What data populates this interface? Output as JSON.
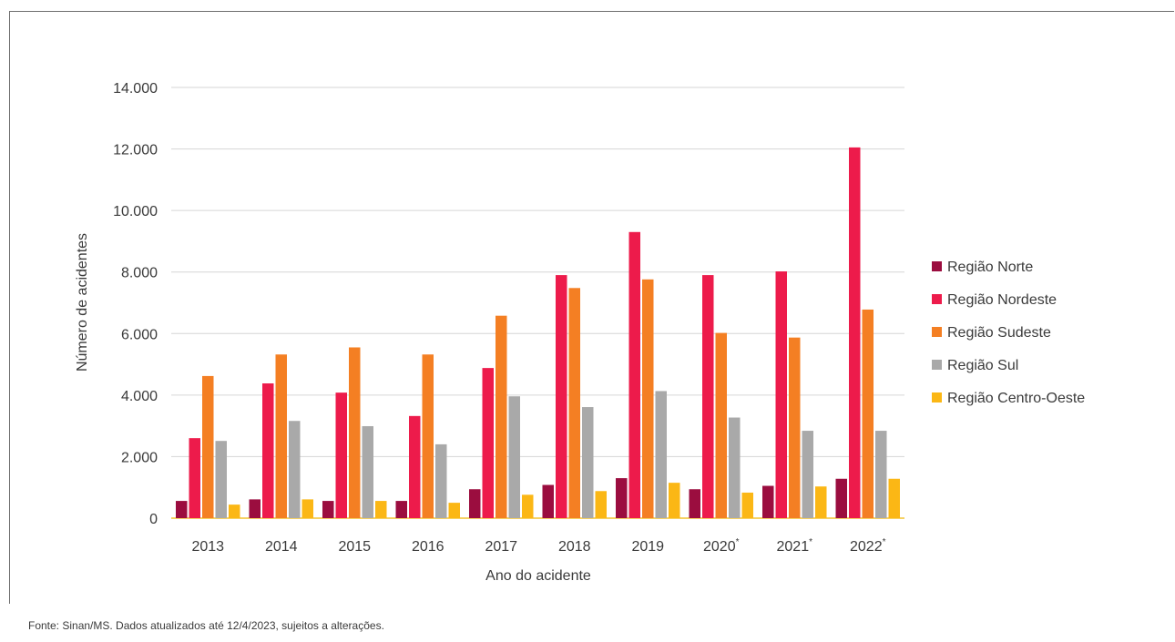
{
  "chart_data": {
    "type": "bar",
    "xlabel": "Ano do acidente",
    "ylabel": "Número de acidentes",
    "ylim": [
      0,
      14000
    ],
    "yticks": [
      0,
      2000,
      4000,
      6000,
      8000,
      10000,
      12000,
      14000
    ],
    "ytick_labels": [
      "0",
      "2.000",
      "4.000",
      "6.000",
      "8.000",
      "10.000",
      "12.000",
      "14.000"
    ],
    "categories": [
      "2013",
      "2014",
      "2015",
      "2016",
      "2017",
      "2018",
      "2019",
      "2020*",
      "2021*",
      "2022*"
    ],
    "grid": true,
    "legend_position": "right",
    "series": [
      {
        "name": "Região Norte",
        "color": "#9b0d3f",
        "values": [
          560,
          610,
          560,
          560,
          940,
          1080,
          1300,
          940,
          1050,
          1280
        ]
      },
      {
        "name": "Região Nordeste",
        "color": "#ed1b4b",
        "values": [
          2600,
          4380,
          4080,
          3320,
          4880,
          7900,
          9300,
          7900,
          8020,
          12050
        ]
      },
      {
        "name": "Região Sudeste",
        "color": "#f47f23",
        "values": [
          4620,
          5320,
          5550,
          5320,
          6580,
          7480,
          7760,
          6020,
          5870,
          6780
        ]
      },
      {
        "name": "Região Sul",
        "color": "#a9a9a9",
        "values": [
          2510,
          3160,
          2990,
          2400,
          3960,
          3610,
          4130,
          3270,
          2840,
          2840
        ]
      },
      {
        "name": "Região Centro-Oeste",
        "color": "#fbb715",
        "values": [
          440,
          610,
          560,
          500,
          760,
          880,
          1150,
          830,
          1030,
          1280
        ]
      }
    ]
  },
  "source_text": "Fonte: Sinan/MS. Dados atualizados até 12/4/2023, sujeitos a alterações."
}
